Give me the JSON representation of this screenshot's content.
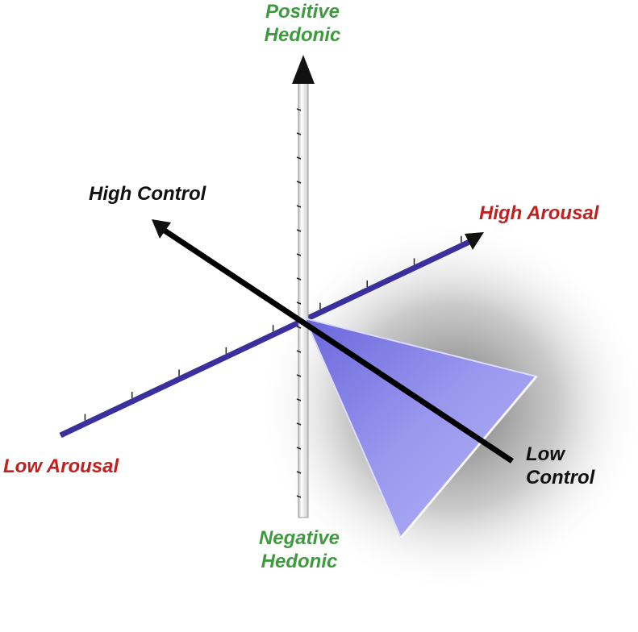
{
  "labels": {
    "positive_hedonic": [
      "Positive",
      "Hedonic"
    ],
    "negative_hedonic": [
      "Negative",
      "Hedonic"
    ],
    "high_control": "High Control",
    "low_control": [
      "Low",
      "Control"
    ],
    "high_arousal": "High Arousal",
    "low_arousal": "Low Arousal"
  },
  "colors": {
    "hedonic_label": "#3f9a3f",
    "arousal_label": "#c0201e",
    "control_label": "#111111",
    "arousal_axis": "#3a2f9c",
    "control_axis": "#000000",
    "hedonic_axis": "#ffffff",
    "cone": "#9c9cf0"
  }
}
